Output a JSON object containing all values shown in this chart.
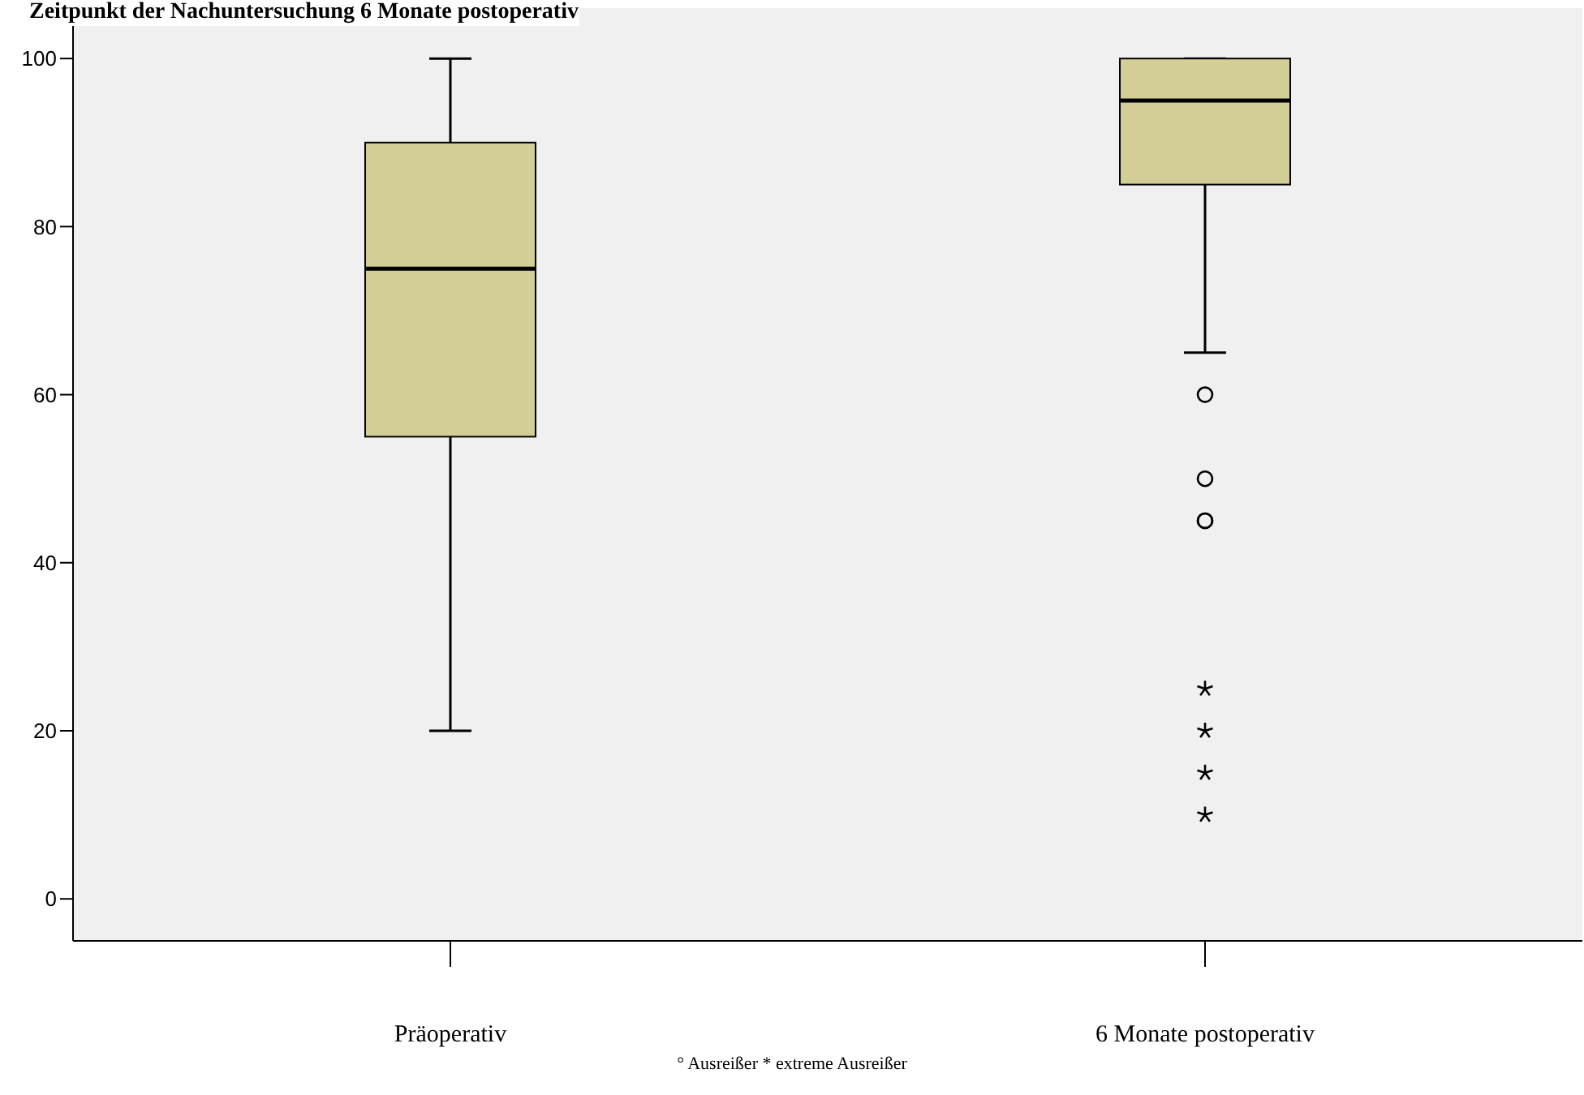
{
  "chart_data": {
    "type": "box",
    "title": "Zeitpunkt der Nachuntersuchung 6 Monate postoperativ",
    "categories": [
      "Präoperativ",
      "6 Monate postoperativ"
    ],
    "color": "#d3cd96",
    "boxes": [
      {
        "low": 20,
        "q1": 55,
        "median": 75,
        "q3": 90,
        "high": 100
      },
      {
        "low": 65,
        "q1": 85,
        "median": 95,
        "q3": 100,
        "high": 100,
        "outliers": [
          60,
          50,
          45,
          45,
          25,
          20,
          15,
          10
        ]
      }
    ],
    "ylim": [
      -5,
      106
    ],
    "yticks": [
      0,
      20,
      40,
      60,
      80,
      100
    ],
    "grid": false,
    "legend": false,
    "annotations": [
      "° Ausreißer * extreme Ausreißer"
    ]
  }
}
